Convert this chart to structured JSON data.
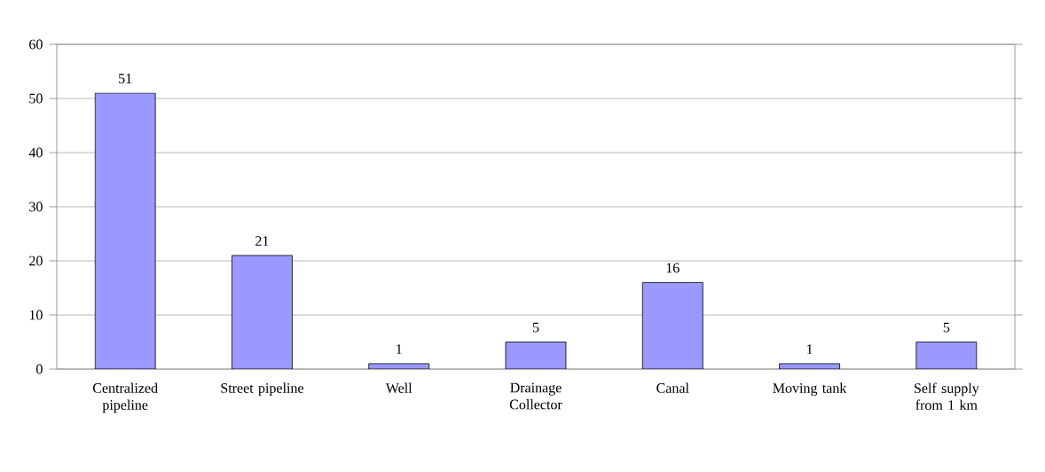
{
  "chart_data": {
    "type": "bar",
    "categories": [
      "Centralized pipeline",
      "Street pipeline",
      "Well",
      "Drainage Collector",
      "Canal",
      "Moving tank",
      "Self supply from 1 km"
    ],
    "values": [
      51,
      21,
      1,
      5,
      16,
      1,
      5
    ],
    "color": "#9999ff",
    "ylim": [
      0,
      60
    ],
    "yticks": [
      0,
      10,
      20,
      30,
      40,
      50,
      60
    ],
    "grid": "y",
    "data_labels": true
  }
}
